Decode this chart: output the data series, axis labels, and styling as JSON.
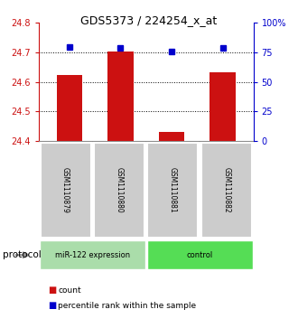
{
  "title": "GDS5373 / 224254_x_at",
  "samples": [
    "GSM1110879",
    "GSM1110880",
    "GSM1110881",
    "GSM1110882"
  ],
  "bar_values": [
    24.623,
    24.703,
    24.432,
    24.634
  ],
  "percentile_values": [
    80,
    79,
    76,
    79
  ],
  "ylim_left": [
    24.4,
    24.8
  ],
  "ylim_right": [
    0,
    100
  ],
  "yticks_left": [
    24.4,
    24.5,
    24.6,
    24.7,
    24.8
  ],
  "yticks_right": [
    0,
    25,
    50,
    75,
    100
  ],
  "ytick_labels_right": [
    "0",
    "25",
    "50",
    "75",
    "100%"
  ],
  "grid_yticks": [
    24.5,
    24.6,
    24.7
  ],
  "bar_color": "#cc1111",
  "marker_color": "#0000cc",
  "groups": [
    {
      "label": "miR-122 expression",
      "indices": [
        0,
        1
      ],
      "color": "#aaddaa"
    },
    {
      "label": "control",
      "indices": [
        2,
        3
      ],
      "color": "#55dd55"
    }
  ],
  "legend_items": [
    {
      "label": "count",
      "color": "#cc1111"
    },
    {
      "label": "percentile rank within the sample",
      "color": "#0000cc"
    }
  ],
  "protocol_label": "protocol",
  "background_color": "#ffffff",
  "left_axis_color": "#cc1111",
  "right_axis_color": "#0000cc",
  "sample_box_color": "#cccccc",
  "bar_width": 0.5
}
